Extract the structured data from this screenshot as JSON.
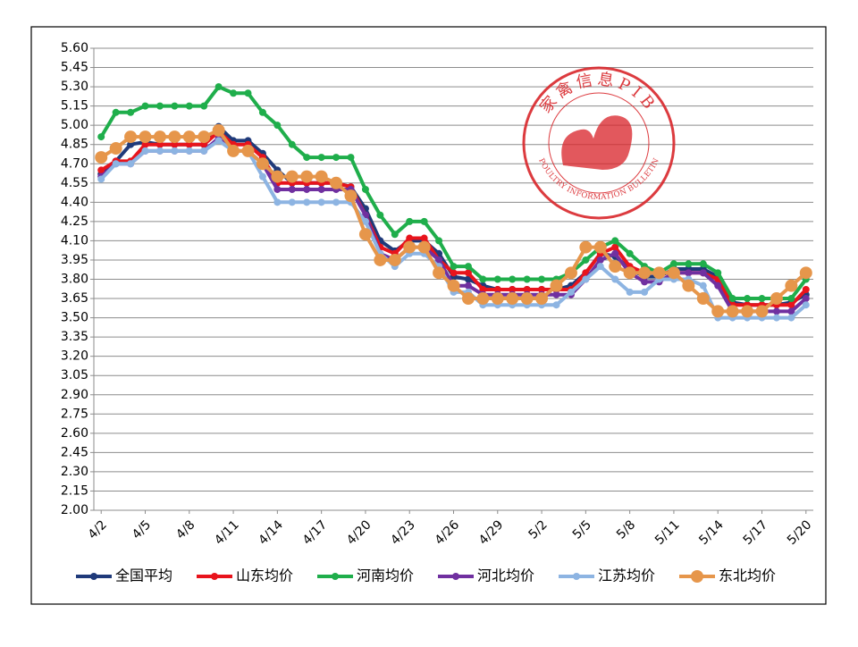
{
  "chart_data": {
    "type": "line",
    "categories": [
      "4/2",
      null,
      null,
      "4/5",
      null,
      null,
      "4/8",
      null,
      null,
      "4/11",
      null,
      null,
      "4/14",
      null,
      null,
      "4/17",
      null,
      null,
      "4/20",
      null,
      null,
      "4/23",
      null,
      null,
      "4/26",
      null,
      null,
      "4/29",
      null,
      null,
      "5/2",
      null,
      null,
      "5/5",
      null,
      null,
      "5/8",
      null,
      null,
      "5/11",
      null,
      null,
      "5/14",
      null,
      null,
      "5/17",
      null,
      null,
      "5/20"
    ],
    "ylim": [
      2.0,
      5.6
    ],
    "yticks": [
      {
        "value": 2.0,
        "label": "2.00"
      },
      2.15,
      {
        "value": 2.3,
        "label": "2.30"
      },
      2.45,
      {
        "value": 2.6,
        "label": "2.60"
      },
      2.75,
      {
        "value": 2.9,
        "label": "2.90"
      },
      3.05,
      {
        "value": 3.2,
        "label": "3.20"
      },
      3.35,
      {
        "value": 3.5,
        "label": "3.50"
      },
      3.65,
      {
        "value": 3.8,
        "label": "3.80"
      },
      3.95,
      {
        "value": 4.1,
        "label": "4.10"
      },
      4.25,
      {
        "value": 4.4,
        "label": "4.40"
      },
      4.55,
      {
        "value": 4.7,
        "label": "4.70"
      },
      4.85,
      {
        "value": 5.0,
        "label": "5.00"
      },
      5.15,
      {
        "value": 5.3,
        "label": "5.30"
      },
      5.45,
      {
        "value": 5.6,
        "label": "5.60"
      }
    ],
    "grid": true,
    "legend": "bottom",
    "watermark": {
      "title": "家禽信息PIB",
      "subtitle": "POULTRY INFORMATION BULLETIN",
      "color": "#d9262b"
    },
    "series": [
      {
        "name": "全国平均",
        "color": "#1f3a7a",
        "values": [
          4.62,
          4.72,
          4.85,
          4.87,
          4.85,
          4.85,
          4.85,
          4.85,
          4.99,
          4.88,
          4.88,
          4.78,
          4.65,
          4.55,
          4.55,
          4.55,
          4.55,
          4.52,
          4.35,
          4.1,
          4.02,
          4.1,
          4.1,
          4.0,
          3.82,
          3.8,
          3.75,
          3.72,
          3.72,
          3.72,
          3.72,
          3.72,
          3.75,
          3.85,
          4.0,
          3.98,
          3.88,
          3.82,
          3.82,
          3.88,
          3.88,
          3.88,
          3.82,
          3.62,
          3.6,
          3.6,
          3.6,
          3.62,
          3.68
        ]
      },
      {
        "name": "山东均价",
        "color": "#e8141c",
        "values": [
          4.65,
          4.72,
          4.72,
          4.85,
          4.85,
          4.85,
          4.85,
          4.85,
          4.95,
          4.85,
          4.85,
          4.75,
          4.55,
          4.55,
          4.55,
          4.55,
          4.55,
          4.52,
          4.3,
          4.05,
          4.0,
          4.12,
          4.12,
          3.95,
          3.85,
          3.85,
          3.72,
          3.72,
          3.72,
          3.72,
          3.72,
          3.72,
          3.72,
          3.85,
          4.0,
          4.05,
          3.9,
          3.85,
          3.85,
          3.85,
          3.85,
          3.85,
          3.8,
          3.6,
          3.6,
          3.6,
          3.6,
          3.6,
          3.72
        ]
      },
      {
        "name": "河南均价",
        "color": "#1fae4b",
        "values": [
          4.91,
          5.1,
          5.1,
          5.15,
          5.15,
          5.15,
          5.15,
          5.15,
          5.3,
          5.25,
          5.25,
          5.1,
          5.0,
          4.85,
          4.75,
          4.75,
          4.75,
          4.75,
          4.5,
          4.3,
          4.15,
          4.25,
          4.25,
          4.1,
          3.9,
          3.9,
          3.8,
          3.8,
          3.8,
          3.8,
          3.8,
          3.8,
          3.85,
          3.95,
          4.05,
          4.1,
          4.0,
          3.9,
          3.85,
          3.92,
          3.92,
          3.92,
          3.85,
          3.65,
          3.65,
          3.65,
          3.65,
          3.65,
          3.8
        ]
      },
      {
        "name": "河北均价",
        "color": "#7030a0",
        "values": [
          4.6,
          4.7,
          4.7,
          4.8,
          4.8,
          4.8,
          4.8,
          4.8,
          4.9,
          4.8,
          4.8,
          4.7,
          4.5,
          4.5,
          4.5,
          4.5,
          4.5,
          4.5,
          4.3,
          4.0,
          3.95,
          4.05,
          4.05,
          3.95,
          3.75,
          3.75,
          3.68,
          3.68,
          3.68,
          3.68,
          3.68,
          3.68,
          3.68,
          3.8,
          3.95,
          4.0,
          3.85,
          3.78,
          3.78,
          3.85,
          3.85,
          3.85,
          3.75,
          3.55,
          3.55,
          3.55,
          3.55,
          3.55,
          3.65
        ]
      },
      {
        "name": "江苏均价",
        "color": "#8db4e2",
        "values": [
          4.58,
          4.7,
          4.7,
          4.8,
          4.8,
          4.8,
          4.8,
          4.8,
          4.88,
          4.8,
          4.8,
          4.6,
          4.4,
          4.4,
          4.4,
          4.4,
          4.4,
          4.4,
          4.25,
          4.0,
          3.9,
          4.0,
          4.0,
          3.9,
          3.7,
          3.7,
          3.6,
          3.6,
          3.6,
          3.6,
          3.6,
          3.6,
          3.7,
          3.8,
          3.9,
          3.8,
          3.7,
          3.7,
          3.8,
          3.8,
          3.8,
          3.75,
          3.5,
          3.5,
          3.5,
          3.5,
          3.5,
          3.5,
          3.6
        ]
      },
      {
        "name": "东北均价",
        "color": "#e6964b",
        "values": [
          4.75,
          4.82,
          4.91,
          4.91,
          4.91,
          4.91,
          4.91,
          4.91,
          4.96,
          4.8,
          4.8,
          4.7,
          4.6,
          4.6,
          4.6,
          4.6,
          4.55,
          4.45,
          4.15,
          3.95,
          3.95,
          4.05,
          4.05,
          3.85,
          3.75,
          3.65,
          3.65,
          3.65,
          3.65,
          3.65,
          3.65,
          3.75,
          3.85,
          4.05,
          4.05,
          3.9,
          3.85,
          3.85,
          3.85,
          3.85,
          3.75,
          3.65,
          3.55,
          3.55,
          3.55,
          3.55,
          3.65,
          3.75,
          3.85
        ]
      }
    ]
  }
}
